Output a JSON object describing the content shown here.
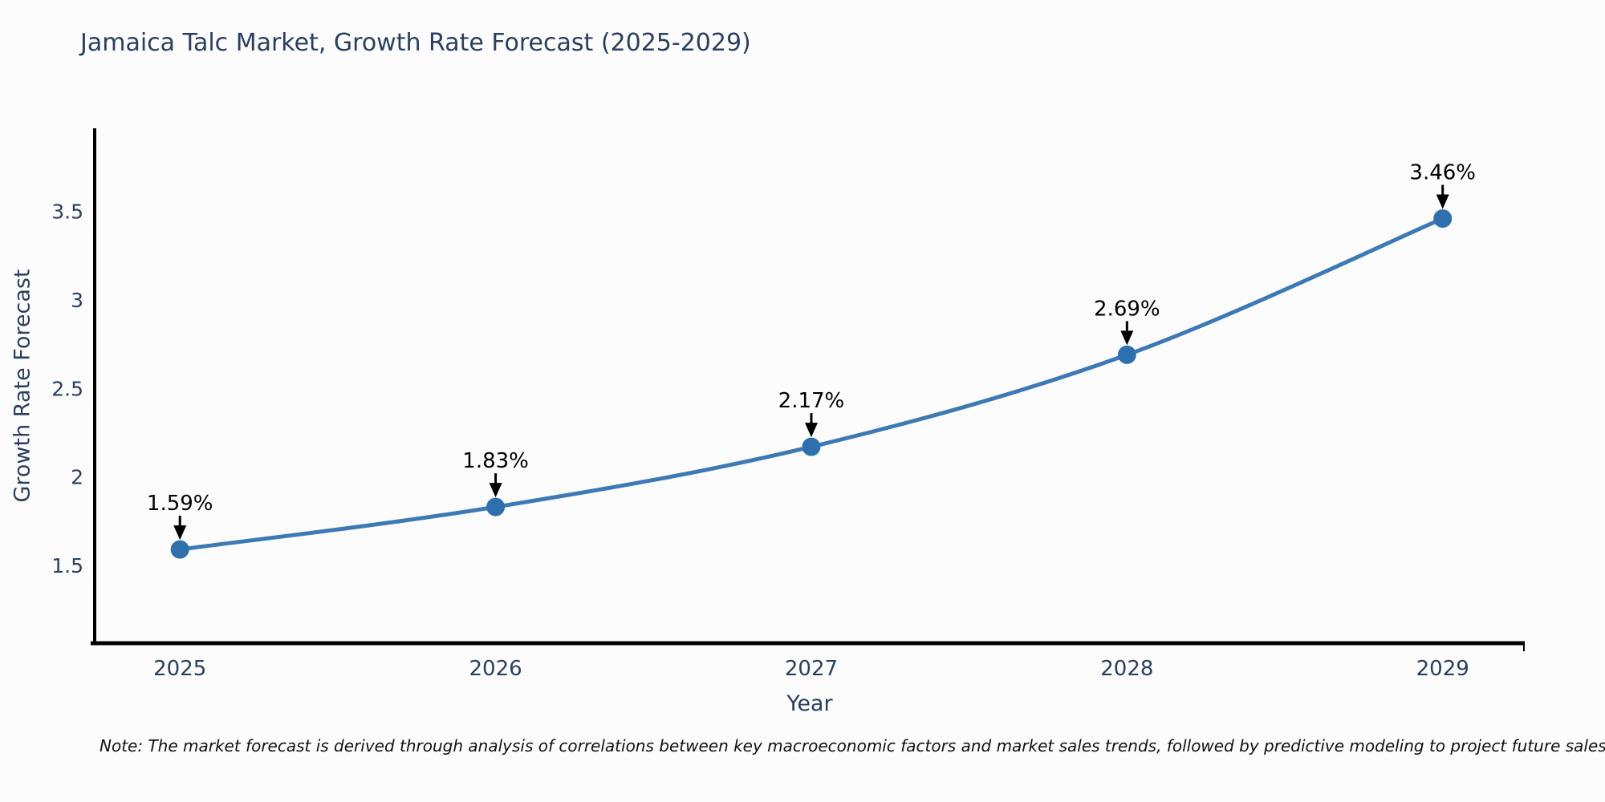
{
  "page": {
    "background_color": "#fcfcfc"
  },
  "chart_data": {
    "type": "line",
    "title": "Jamaica Talc Market, Growth Rate Forecast (2025-2029)",
    "xlabel": "Year",
    "ylabel": "Growth Rate Forecast",
    "x": [
      2025,
      2026,
      2027,
      2028,
      2029
    ],
    "series": [
      {
        "name": "Growth Rate Forecast",
        "values": [
          1.59,
          1.83,
          2.17,
          2.69,
          3.46
        ]
      }
    ],
    "point_labels": [
      "1.59%",
      "1.83%",
      "2.17%",
      "2.69%",
      "3.46%"
    ],
    "x_tick_labels": [
      "2025",
      "2026",
      "2027",
      "2028",
      "2029"
    ],
    "y_ticks": [
      1.5,
      2,
      2.5,
      3,
      3.5
    ],
    "y_tick_labels": [
      "1.5",
      "2",
      "2.5",
      "3",
      "3.5"
    ],
    "ylim": [
      1.06,
      3.97
    ],
    "xlim": [
      2024.73,
      2029.26
    ],
    "grid": false,
    "legend": "none",
    "line_color": "#3d7ab5",
    "marker_color": "#2e6fad",
    "axis_color": "#000000",
    "text_color": "#2a3f5f",
    "annotation_color": "#000000",
    "note": "Note: The market forecast is derived through analysis of correlations between key macroeconomic factors and market sales trends, followed by predictive modeling to project future sales trends."
  }
}
